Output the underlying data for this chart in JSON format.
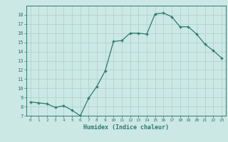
{
  "x": [
    0,
    1,
    2,
    3,
    4,
    5,
    6,
    7,
    8,
    9,
    10,
    11,
    12,
    13,
    14,
    15,
    16,
    17,
    18,
    19,
    20,
    21,
    22,
    23
  ],
  "y": [
    8.5,
    8.4,
    8.3,
    7.9,
    8.1,
    7.6,
    7.0,
    8.9,
    10.2,
    11.9,
    15.1,
    15.2,
    16.0,
    16.0,
    15.9,
    18.1,
    18.2,
    17.8,
    16.7,
    16.7,
    15.9,
    14.8,
    14.1,
    13.3
  ],
  "xlabel": "Humidex (Indice chaleur)",
  "line_color": "#2d7a6e",
  "marker": "+",
  "bg_color": "#cce8e4",
  "grid_color": "#aacfcb",
  "tick_color": "#2d7a6e",
  "label_color": "#2d7a6e",
  "ylim": [
    7,
    19
  ],
  "xlim": [
    -0.5,
    23.5
  ],
  "yticks": [
    7,
    8,
    9,
    10,
    11,
    12,
    13,
    14,
    15,
    16,
    17,
    18
  ],
  "xticks": [
    0,
    1,
    2,
    3,
    4,
    5,
    6,
    7,
    8,
    9,
    10,
    11,
    12,
    13,
    14,
    15,
    16,
    17,
    18,
    19,
    20,
    21,
    22,
    23
  ]
}
